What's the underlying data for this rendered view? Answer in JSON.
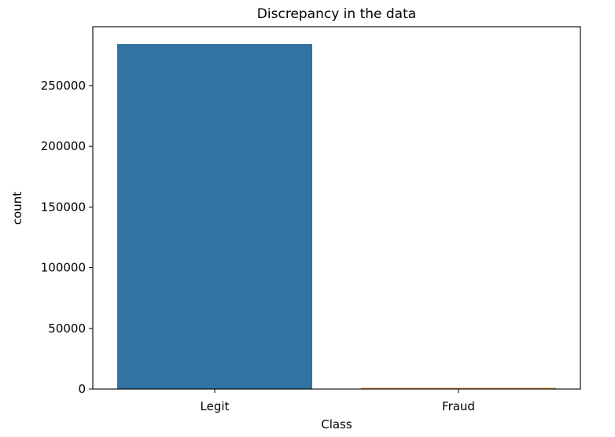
{
  "chart_data": {
    "type": "bar",
    "title": "Discrepancy in the data",
    "xlabel": "Class",
    "ylabel": "count",
    "categories": [
      "Legit",
      "Fraud"
    ],
    "values": [
      284315,
      492
    ],
    "colors": [
      "#3274a1",
      "#e1812c"
    ],
    "ylim": [
      0,
      298530
    ],
    "yticks": [
      0,
      50000,
      100000,
      150000,
      200000,
      250000
    ],
    "grid": false,
    "legend": "none"
  }
}
